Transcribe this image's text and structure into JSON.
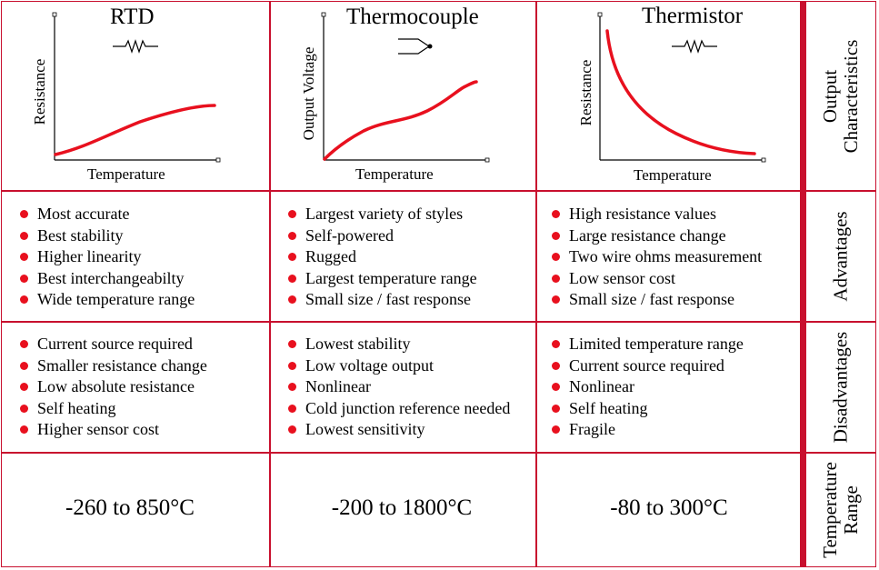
{
  "columns": [
    {
      "title": "RTD",
      "chart_data": {
        "type": "line",
        "xlabel": "Temperature",
        "ylabel": "Resistance",
        "trend": "rising, gently concave"
      },
      "advantages": [
        "Most accurate",
        "Best stability",
        "Higher linearity",
        "Best interchangeabilty",
        "Wide temperature range"
      ],
      "disadvantages": [
        "Current source required",
        "Smaller resistance change",
        "Low absolute resistance",
        "Self heating",
        "Higher sensor cost"
      ],
      "range": "-260 to 850°C"
    },
    {
      "title": "Thermocouple",
      "chart_data": {
        "type": "line",
        "xlabel": "Temperature",
        "ylabel": "Output Voltage",
        "trend": "rising, S-shaped"
      },
      "advantages": [
        "Largest variety of styles",
        "Self-powered",
        "Rugged",
        "Largest temperature range",
        "Small size / fast response"
      ],
      "disadvantages": [
        "Lowest stability",
        "Low voltage output",
        "Nonlinear",
        "Cold junction reference needed",
        "Lowest sensitivity"
      ],
      "range": "-200 to 1800°C"
    },
    {
      "title": "Thermistor",
      "chart_data": {
        "type": "line",
        "xlabel": "Temperature",
        "ylabel": "Resistance",
        "trend": "falling, steep then flattening"
      },
      "advantages": [
        "High resistance values",
        "Large resistance change",
        "Two wire ohms measurement",
        "Low sensor cost",
        "Small size / fast response"
      ],
      "disadvantages": [
        "Limited temperature range",
        "Current source required",
        "Nonlinear",
        "Self heating",
        "Fragile"
      ],
      "range": "-80 to 300°C"
    }
  ],
  "row_labels": {
    "output": [
      "Output",
      "Characteristics"
    ],
    "advantages": "Advantages",
    "disadvantages": "Disadvantages",
    "range": [
      "Temperature",
      "Range"
    ]
  },
  "colors": {
    "border": "#c8102e",
    "curve": "#e8101e",
    "bullet": "#e8101e"
  },
  "icons": [
    "resistor-symbol-icon",
    "thermocouple-junction-icon",
    "resistor-symbol-icon"
  ]
}
